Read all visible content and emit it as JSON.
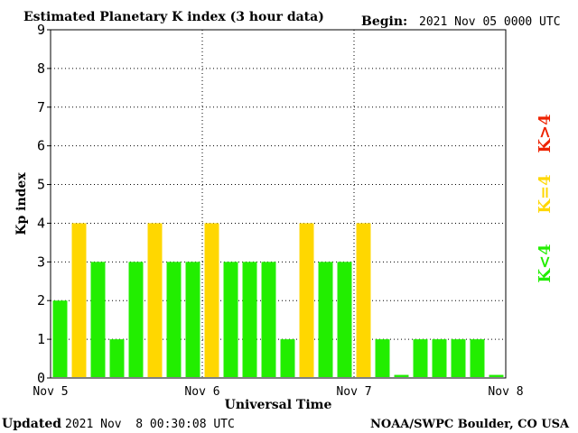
{
  "header": {
    "title": "Estimated Planetary K index (3 hour data)",
    "begin_label": "Begin:",
    "begin_value": "2021 Nov 05 0000 UTC"
  },
  "footer": {
    "updated_label": "Updated",
    "updated_value": "2021 Nov  8 00:30:08 UTC",
    "credit": "NOAA/SWPC Boulder, CO USA"
  },
  "legend": {
    "high": "K>4",
    "equal": "K=4",
    "low": "K<4"
  },
  "colors": {
    "low": "#22ee00",
    "equal": "#ffd700",
    "high": "#ee2200",
    "grid": "#000000"
  },
  "chart_data": {
    "type": "bar",
    "title": "Estimated Planetary K index (3 hour data)",
    "xlabel": "Universal Time",
    "ylabel": "Kp index",
    "ylim": [
      0,
      9
    ],
    "yticks": [
      "0",
      "1",
      "2",
      "3",
      "4",
      "5",
      "6",
      "7",
      "8",
      "9"
    ],
    "xticks": [
      "Nov 5",
      "Nov 6",
      "Nov 7",
      "Nov 8"
    ],
    "grid": true,
    "values": [
      2,
      4,
      3,
      1,
      3,
      4,
      3,
      3,
      4,
      3,
      3,
      3,
      1,
      4,
      3,
      3,
      4,
      1,
      0,
      1,
      1,
      1,
      1,
      0
    ]
  }
}
